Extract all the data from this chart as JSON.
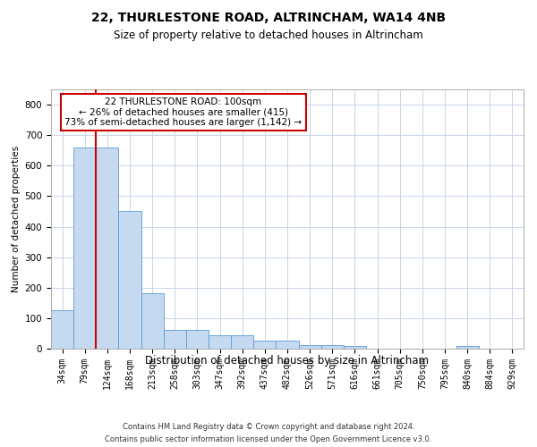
{
  "title": "22, THURLESTONE ROAD, ALTRINCHAM, WA14 4NB",
  "subtitle": "Size of property relative to detached houses in Altrincham",
  "xlabel": "Distribution of detached houses by size in Altrincham",
  "ylabel": "Number of detached properties",
  "categories": [
    "34sqm",
    "79sqm",
    "124sqm",
    "168sqm",
    "213sqm",
    "258sqm",
    "303sqm",
    "347sqm",
    "392sqm",
    "437sqm",
    "482sqm",
    "526sqm",
    "571sqm",
    "616sqm",
    "661sqm",
    "705sqm",
    "750sqm",
    "795sqm",
    "840sqm",
    "884sqm",
    "929sqm"
  ],
  "values": [
    125,
    660,
    660,
    450,
    183,
    63,
    63,
    45,
    45,
    25,
    25,
    13,
    13,
    8,
    0,
    0,
    0,
    0,
    8,
    0,
    0
  ],
  "bar_color": "#c5d9f0",
  "bar_edge_color": "#5b9bd5",
  "vline_color": "#cc0000",
  "vline_x": 1.5,
  "annotation_text": "22 THURLESTONE ROAD: 100sqm\n← 26% of detached houses are smaller (415)\n73% of semi-detached houses are larger (1,142) →",
  "annotation_box_edgecolor": "#cc0000",
  "ylim_max": 850,
  "yticks": [
    0,
    100,
    200,
    300,
    400,
    500,
    600,
    700,
    800
  ],
  "footer_line1": "Contains HM Land Registry data © Crown copyright and database right 2024.",
  "footer_line2": "Contains public sector information licensed under the Open Government Licence v3.0.",
  "bg_color": "#ffffff",
  "grid_color": "#c8d4e8",
  "title_fontsize": 10,
  "subtitle_fontsize": 8.5,
  "ylabel_fontsize": 7.5,
  "xlabel_fontsize": 8.5,
  "tick_fontsize": 7,
  "annotation_fontsize": 7.5,
  "footer_fontsize": 6
}
